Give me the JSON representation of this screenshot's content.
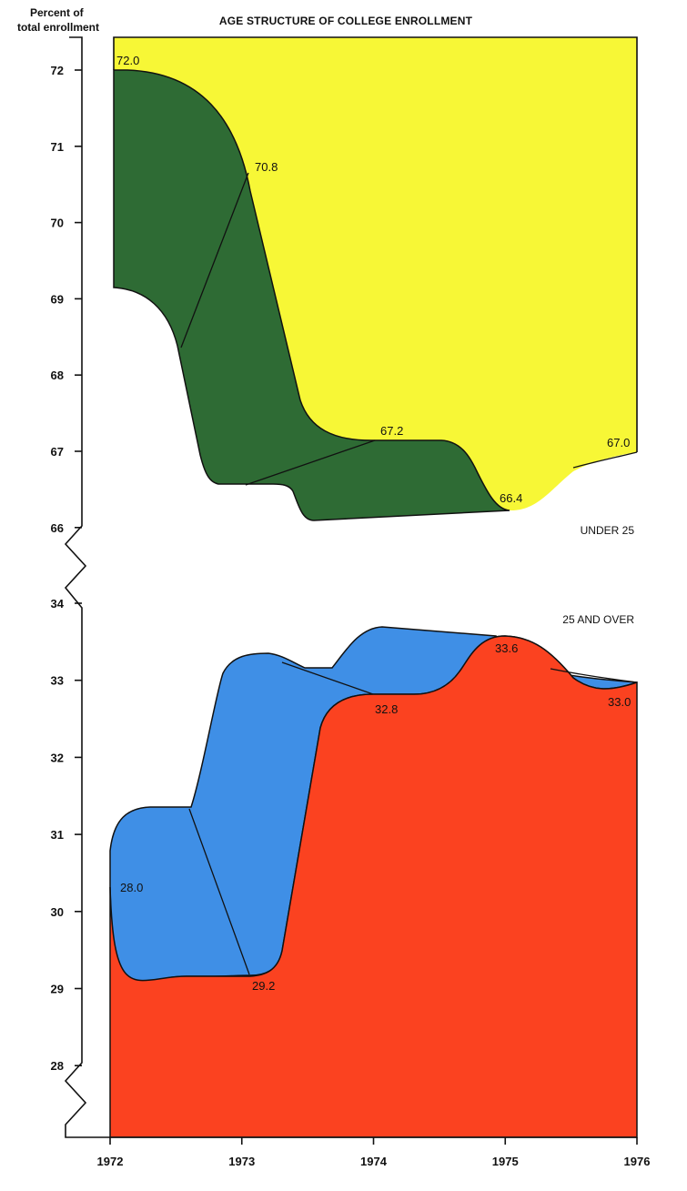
{
  "chart_data": [
    {
      "type": "area",
      "title": "AGE STRUCTURE OF COLLEGE ENROLLMENT",
      "ylabel": "Percent of total enrollment",
      "xlabel": "",
      "x": [
        "1972",
        "1973",
        "1974",
        "1975",
        "1976"
      ],
      "y_ticks": [
        "72",
        "71",
        "70",
        "69",
        "68",
        "67",
        "66"
      ],
      "ylim": [
        66,
        72
      ],
      "series": [
        {
          "name": "UNDER 25",
          "values": [
            72.0,
            70.8,
            67.2,
            66.4,
            67.0
          ],
          "labels": [
            "72.0",
            "70.8",
            "67.2",
            "66.4",
            "67.0"
          ],
          "color": "#f7f736"
        }
      ],
      "depth_color": "#2e6b34",
      "grid": false,
      "legend": "bottom-right"
    },
    {
      "type": "area",
      "x": [
        "1972",
        "1973",
        "1974",
        "1975",
        "1976"
      ],
      "y_ticks": [
        "34",
        "33",
        "32",
        "31",
        "30",
        "29",
        "28"
      ],
      "ylim": [
        27,
        34
      ],
      "series": [
        {
          "name": "25 AND OVER",
          "values": [
            28.0,
            29.2,
            32.8,
            33.6,
            33.0
          ],
          "labels": [
            "28.0",
            "29.2",
            "32.8",
            "33.6",
            "33.0"
          ],
          "color": "#fb4220"
        }
      ],
      "depth_color": "#3f8fe6",
      "grid": false,
      "legend": "top-right"
    }
  ]
}
